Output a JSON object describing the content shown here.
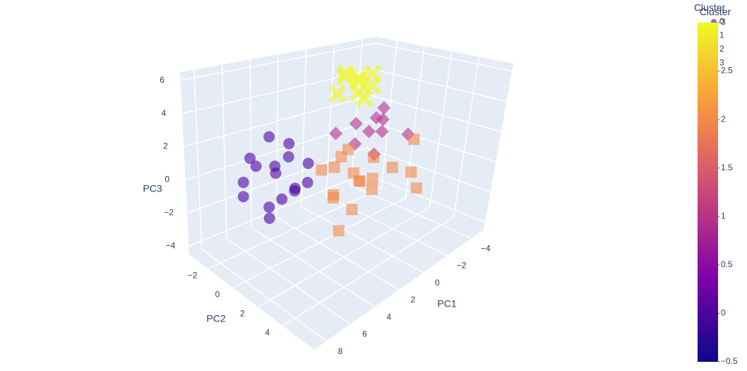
{
  "chart_data": {
    "type": "scatter3d",
    "xlabel": "PC1",
    "ylabel": "PC2",
    "zlabel": "PC3",
    "xlim": [
      -5,
      9
    ],
    "ylim": [
      -3.5,
      6.5
    ],
    "zlim": [
      -4.5,
      6.5
    ],
    "xticks": [
      {
        "value": -4,
        "label": "−4"
      },
      {
        "value": -2,
        "label": "−2"
      },
      0,
      2,
      4,
      6,
      8
    ],
    "yticks": [
      {
        "value": -2,
        "label": "−2"
      },
      0,
      2,
      4
    ],
    "zticks": [
      {
        "value": -4,
        "label": "−4"
      },
      {
        "value": -2,
        "label": "−2"
      },
      0,
      2,
      4,
      6
    ],
    "grid": true,
    "legend_title": "Cluster",
    "series": [
      {
        "name": "0",
        "symbol": "circle",
        "color": "#4c02a1",
        "x": [
          5,
          6,
          4.5,
          5.5,
          6.5,
          4,
          5,
          6,
          5.5,
          4.5,
          7,
          5,
          6,
          4,
          5.5,
          3.5
        ],
        "y": [
          -0.5,
          -1,
          0,
          0.5,
          -1.5,
          -0.5,
          1,
          0,
          -2,
          1.5,
          -1,
          -1,
          0.5,
          0,
          -0.5,
          0.5
        ],
        "z": [
          0.5,
          1,
          1.5,
          -0.5,
          0,
          2,
          0,
          -1,
          1,
          0.5,
          -0.5,
          2.5,
          1.5,
          -0.5,
          -2,
          1
        ]
      },
      {
        "name": "1",
        "symbol": "diamond",
        "color": "#b52f8c",
        "x": [
          -0.5,
          0,
          -1,
          0.5,
          -1.5,
          0,
          -2,
          -0.5,
          -2.5,
          1
        ],
        "y": [
          1,
          0.5,
          1.5,
          1,
          1,
          2,
          0.5,
          1.5,
          2,
          0
        ],
        "z": [
          2,
          2.5,
          2,
          1.5,
          2.5,
          1,
          3,
          3,
          1.5,
          2
        ]
      },
      {
        "name": "2",
        "symbol": "square",
        "color": "#f48849",
        "x": [
          1,
          2,
          0,
          1.5,
          2.5,
          0.5,
          -0.5,
          3,
          1,
          2,
          -1,
          0,
          1.5,
          2,
          -2,
          -3,
          3.5,
          -1.5
        ],
        "y": [
          1.5,
          1,
          2,
          2.5,
          1.5,
          0.5,
          1.5,
          2,
          3,
          0,
          2.5,
          1,
          1,
          2.5,
          3,
          2,
          3,
          4
        ],
        "z": [
          0,
          0.5,
          -0.5,
          0,
          -1,
          1,
          0.5,
          -0.5,
          -0.5,
          0,
          0,
          -1,
          1,
          -1.5,
          -0.5,
          1,
          -2,
          -1
        ]
      },
      {
        "name": "3",
        "symbol": "x",
        "color": "#f0f921",
        "x": [
          -0.5,
          0,
          -1,
          0.5,
          -0.5,
          -1,
          0,
          -1.5,
          1
        ],
        "y": [
          0,
          0.5,
          -0.5,
          0,
          0.5,
          0.5,
          -0.5,
          0,
          0
        ],
        "z": [
          5,
          4.5,
          5,
          5.5,
          4,
          5.5,
          5.5,
          4.5,
          4.5
        ]
      }
    ],
    "colorbar": {
      "title": "Cluster",
      "clim": [
        -0.5,
        3
      ],
      "colorscale": [
        "#0d0887",
        "#7e03a8",
        "#cc4778",
        "#f89540",
        "#f0f921"
      ],
      "ticks": [
        {
          "value": -0.5,
          "label": "−0.5"
        },
        0,
        0.5,
        1,
        1.5,
        2,
        2.5,
        3
      ]
    }
  }
}
